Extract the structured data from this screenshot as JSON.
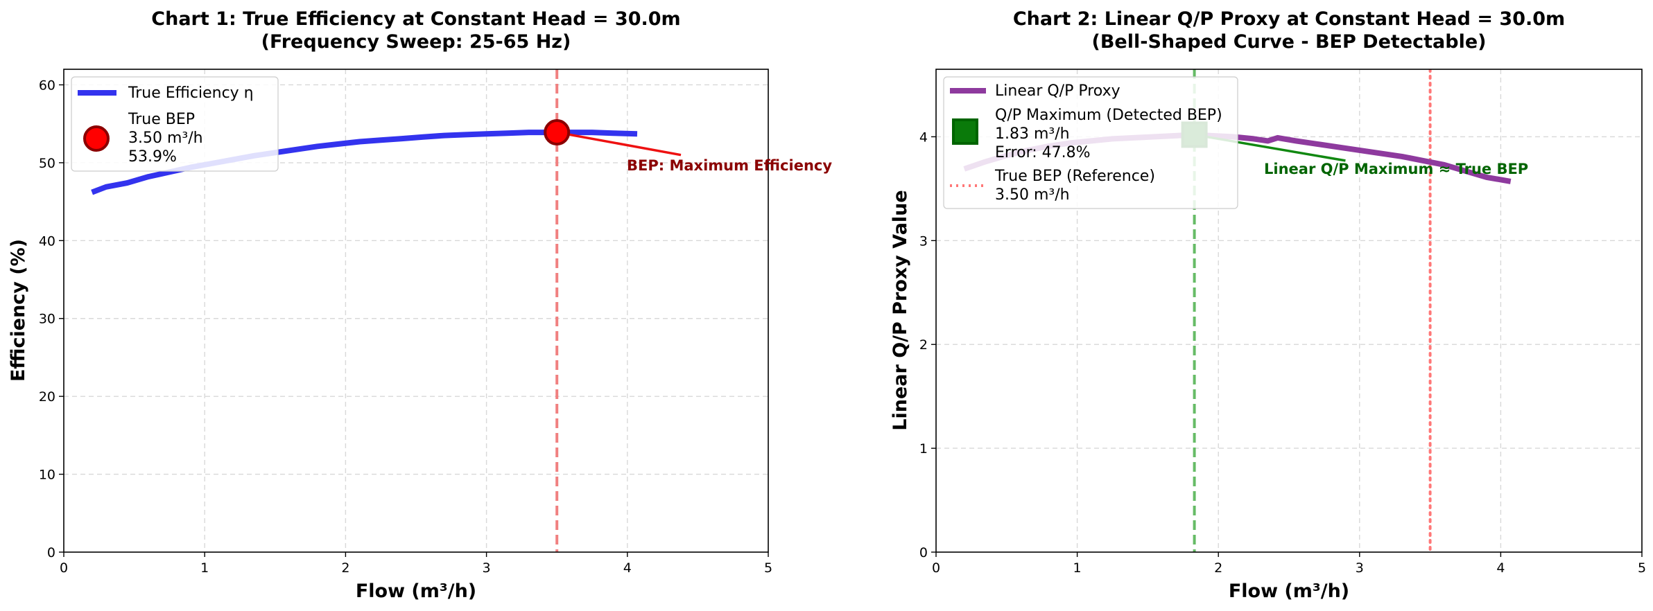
{
  "chart_data": [
    {
      "type": "line",
      "title_line1": "Chart 1: True Efficiency at Constant Head = 30.0m",
      "title_line2": "(Frequency Sweep: 25-65 Hz)",
      "xlabel": "Flow (m³/h)",
      "ylabel": "Efficiency (%)",
      "xlim": [
        0,
        5
      ],
      "ylim": [
        0,
        62
      ],
      "xticks": [
        "0",
        "1",
        "2",
        "3",
        "4",
        "5"
      ],
      "yticks": [
        "0",
        "10",
        "20",
        "30",
        "40",
        "50",
        "60"
      ],
      "grid": true,
      "legend_position": "upper-left",
      "series": [
        {
          "name": "True Efficiency η",
          "color": "#3333ee",
          "x": [
            0.2,
            0.3,
            0.45,
            0.6,
            0.75,
            0.9,
            1.05,
            1.2,
            1.35,
            1.5,
            1.65,
            1.8,
            1.95,
            2.1,
            2.25,
            2.4,
            2.55,
            2.7,
            2.85,
            3.0,
            3.15,
            3.3,
            3.45,
            3.5,
            3.6,
            3.75,
            3.9,
            4.07
          ],
          "values": [
            46.2,
            46.9,
            47.4,
            48.2,
            48.8,
            49.4,
            49.9,
            50.4,
            50.9,
            51.3,
            51.7,
            52.1,
            52.4,
            52.7,
            52.9,
            53.1,
            53.3,
            53.5,
            53.6,
            53.7,
            53.8,
            53.9,
            53.9,
            53.9,
            53.9,
            53.9,
            53.8,
            53.7
          ]
        }
      ],
      "marker": {
        "label": "True BEP",
        "x": 3.5,
        "y": 53.9,
        "x_text": "3.50 m³/h",
        "y_text": "53.9%",
        "color": "#ff0000",
        "edge": "#8b0000"
      },
      "vline": {
        "x": 3.5,
        "color": "#f08080",
        "style": "dashed"
      },
      "annotation": {
        "text": "BEP: Maximum Efficiency",
        "x_from": 3.5,
        "y_from": 53.9,
        "x_to": 4.38,
        "y_to": 51.0,
        "color": "#8b0000",
        "arrow_color": "#ee1111"
      }
    },
    {
      "type": "line",
      "title_line1": "Chart 2: Linear Q/P Proxy at Constant Head = 30.0m",
      "title_line2": "(Bell-Shaped Curve - BEP Detectable)",
      "xlabel": "Flow (m³/h)",
      "ylabel": "Linear Q/P Proxy Value",
      "xlim": [
        0,
        5
      ],
      "ylim": [
        0,
        4.65
      ],
      "xticks": [
        "0",
        "1",
        "2",
        "3",
        "4",
        "5"
      ],
      "yticks": [
        "0",
        "1",
        "2",
        "3",
        "4"
      ],
      "grid": true,
      "legend_position": "upper-left",
      "series": [
        {
          "name": "Linear Q/P Proxy",
          "color": "#8e3a9e",
          "x": [
            0.2,
            0.35,
            0.5,
            0.65,
            0.8,
            0.95,
            1.1,
            1.25,
            1.4,
            1.55,
            1.7,
            1.83,
            1.95,
            2.1,
            2.25,
            2.35,
            2.42,
            2.55,
            2.7,
            2.85,
            3.0,
            3.15,
            3.3,
            3.45,
            3.6,
            3.75,
            3.9,
            4.07
          ],
          "values": [
            3.69,
            3.76,
            3.82,
            3.87,
            3.91,
            3.94,
            3.96,
            3.98,
            3.99,
            4.0,
            4.01,
            4.02,
            4.01,
            4.0,
            3.98,
            3.96,
            3.99,
            3.96,
            3.93,
            3.9,
            3.87,
            3.84,
            3.81,
            3.77,
            3.73,
            3.67,
            3.61,
            3.57
          ]
        }
      ],
      "marker": {
        "label": "Q/P Maximum (Detected BEP)",
        "x": 1.83,
        "y": 4.02,
        "x_text": "1.83 m³/h",
        "err_text": "Error: 47.8%",
        "color": "#0a7a0a",
        "edge": "#006400"
      },
      "vline_detected": {
        "x": 1.83,
        "color": "#66bb66",
        "style": "dashed"
      },
      "vline_true": {
        "x": 3.5,
        "color": "#ff7777",
        "style": "dotted",
        "label": "True BEP (Reference)",
        "x_text": "3.50 m³/h"
      },
      "annotation": {
        "text": "Linear Q/P Maximum ≈ True BEP",
        "x_from": 1.83,
        "y_from": 4.02,
        "x_to": 2.9,
        "y_to": 3.77,
        "color": "#006400",
        "arrow_color": "#118811"
      }
    }
  ]
}
